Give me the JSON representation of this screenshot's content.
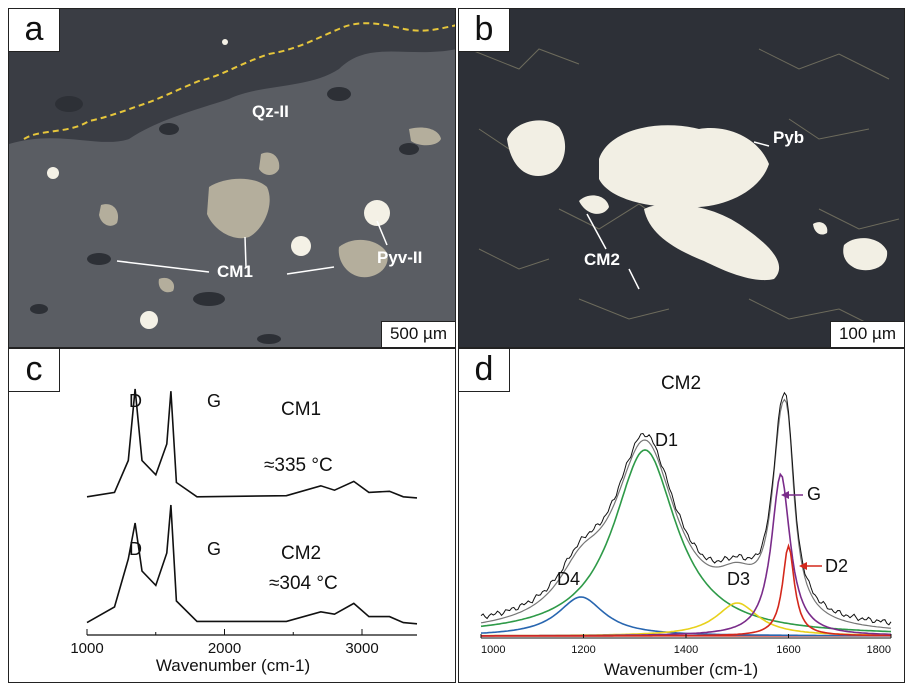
{
  "panels": {
    "a": {
      "letter": "a",
      "labels": {
        "qz": "Qz-II",
        "py": "Pyv-II",
        "cm": "CM1"
      },
      "scale": "500 µm"
    },
    "b": {
      "letter": "b",
      "labels": {
        "py": "Pyb",
        "cm": "CM2"
      },
      "scale": "100 µm"
    },
    "c": {
      "letter": "c",
      "spectra": [
        {
          "name": "CM1",
          "temp": "≈335 °C",
          "peak_d": "D",
          "peak_g": "G"
        },
        {
          "name": "CM2",
          "temp": "≈304 °C",
          "peak_d": "D",
          "peak_g": "G"
        }
      ],
      "x_ticks": [
        "1000",
        "2000",
        "3000"
      ],
      "xlabel": "Wavenumber (cm-1)"
    },
    "d": {
      "letter": "d",
      "title": "CM2",
      "x_ticks": [
        "1000",
        "1200",
        "1400",
        "1600",
        "1800"
      ],
      "xlabel": "Wavenumber (cm-1)",
      "peak_labels": {
        "d1": "D1",
        "d2": "D2",
        "d3": "D3",
        "d4": "D4",
        "g": "G"
      }
    }
  },
  "chart_data": [
    {
      "type": "line",
      "panel": "c",
      "title": "",
      "xlabel": "Wavenumber (cm-1)",
      "ylabel": "",
      "xlim": [
        1000,
        3400
      ],
      "series": [
        {
          "name": "CM1",
          "x": [
            1000,
            1200,
            1300,
            1350,
            1400,
            1500,
            1580,
            1610,
            1650,
            1800,
            2450,
            2700,
            2800,
            2940,
            3050,
            3200,
            3300,
            3400
          ],
          "y": [
            0.02,
            0.06,
            0.35,
            1.0,
            0.35,
            0.22,
            0.5,
            0.98,
            0.15,
            0.02,
            0.03,
            0.12,
            0.08,
            0.16,
            0.06,
            0.07,
            0.02,
            0.01
          ]
        },
        {
          "name": "CM2",
          "x": [
            1000,
            1200,
            1300,
            1350,
            1400,
            1500,
            1580,
            1610,
            1650,
            1800,
            2450,
            2700,
            2800,
            2940,
            3050,
            3200,
            3300,
            3400
          ],
          "y": [
            0.02,
            0.15,
            0.55,
            0.85,
            0.45,
            0.33,
            0.6,
            1.0,
            0.2,
            0.03,
            0.03,
            0.11,
            0.09,
            0.18,
            0.07,
            0.07,
            0.02,
            0.01
          ]
        }
      ],
      "peak_positions": {
        "D": 1350,
        "G": 1600
      }
    },
    {
      "type": "line",
      "panel": "d",
      "title": "CM2",
      "xlabel": "Wavenumber (cm-1)",
      "ylabel": "",
      "xlim": [
        1000,
        1800
      ],
      "series": [
        {
          "name": "D1",
          "color": "#2e9a48",
          "center": 1320,
          "width": 75,
          "height": 0.62
        },
        {
          "name": "D4",
          "color": "#2866b0",
          "center": 1195,
          "width": 55,
          "height": 0.13
        },
        {
          "name": "D3",
          "color": "#e8d11c",
          "center": 1500,
          "width": 50,
          "height": 0.11
        },
        {
          "name": "G",
          "color": "#7a2c8a",
          "center": 1585,
          "width": 22,
          "height": 0.54
        },
        {
          "name": "D2",
          "color": "#d4281c",
          "center": 1600,
          "width": 14,
          "height": 0.3
        }
      ]
    }
  ]
}
